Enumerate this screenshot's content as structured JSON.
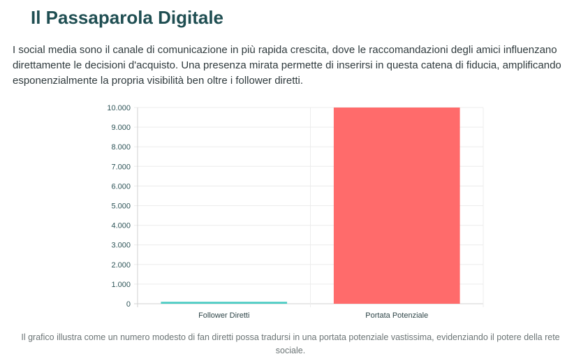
{
  "header": {
    "title": "Il Passaparola Digitale"
  },
  "intro": "I social media sono il canale di comunicazione in più rapida crescita, dove le raccomandazioni degli amici influenzano direttamente le decisioni d'acquisto. Una presenza mirata permette di inserirsi in questa catena di fiducia, amplificando esponenzialmente la propria visibilità ben oltre i follower diretti.",
  "caption": "Il grafico illustra come un numero modesto di fan diretti possa tradursi in una portata potenziale vastissima, evidenziando il potere della rete sociale.",
  "chart_data": {
    "type": "bar",
    "categories": [
      "Follower Diretti",
      "Portata Potenziale"
    ],
    "values": [
      100,
      10000
    ],
    "colors": [
      "#4ecdc4",
      "#ff6b6b"
    ],
    "ylim": [
      0,
      10000
    ],
    "yticks": [
      "0",
      "1.000",
      "2.000",
      "3.000",
      "4.000",
      "5.000",
      "6.000",
      "7.000",
      "8.000",
      "9.000",
      "10.000"
    ],
    "grid": true,
    "legend": "none"
  }
}
